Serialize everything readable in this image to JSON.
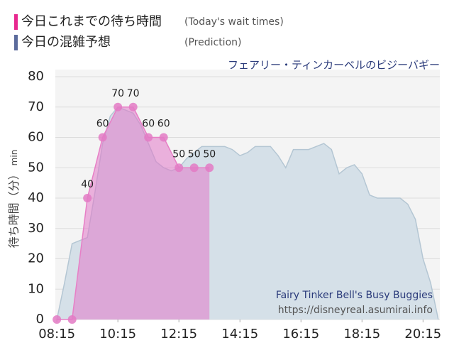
{
  "chart_data": {
    "type": "area",
    "subtitle": "フェアリー・ティンカーベルのビジーバギー",
    "ylabel": "待ち時間（分）",
    "yunit": "min",
    "annotations": [
      "Fairy Tinker Bell's Busy Buggies",
      "https://disneyreal.asumirai.info"
    ],
    "xlim": [
      492,
      1248
    ],
    "xticks": [
      {
        "value": 495,
        "label": "08:15"
      },
      {
        "value": 615,
        "label": "10:15"
      },
      {
        "value": 735,
        "label": "12:15"
      },
      {
        "value": 855,
        "label": "14:15"
      },
      {
        "value": 975,
        "label": "16:15"
      },
      {
        "value": 1095,
        "label": "18:15"
      },
      {
        "value": 1215,
        "label": "20:15"
      }
    ],
    "ylim": [
      0,
      80
    ],
    "yticks": [
      0,
      10,
      20,
      30,
      40,
      50,
      60,
      70,
      80
    ],
    "grid": true,
    "series": [
      {
        "name": "今日の混雑予想",
        "note": "(Prediction)",
        "color": "#5b6b9c",
        "fill": "#d5e0e8",
        "stroke": "#b4c6d3",
        "points": false,
        "x": [
          495,
          510,
          525,
          540,
          555,
          570,
          585,
          600,
          615,
          630,
          645,
          660,
          675,
          690,
          705,
          720,
          735,
          750,
          765,
          780,
          795,
          810,
          825,
          840,
          855,
          870,
          885,
          900,
          915,
          930,
          945,
          960,
          975,
          990,
          1005,
          1020,
          1035,
          1050,
          1065,
          1080,
          1095,
          1110,
          1125,
          1140,
          1155,
          1170,
          1185,
          1200,
          1215,
          1230,
          1245
        ],
        "values": [
          0,
          12,
          25,
          26,
          27,
          42,
          58,
          67,
          70,
          69,
          68,
          64,
          58,
          52,
          50,
          49,
          50,
          53,
          55,
          57,
          57,
          57,
          57,
          56,
          54,
          55,
          57,
          57,
          57,
          54,
          50,
          56,
          56,
          56,
          57,
          58,
          56,
          48,
          50,
          51,
          48,
          41,
          40,
          40,
          40,
          40,
          38,
          33,
          20,
          12,
          0
        ]
      },
      {
        "name": "今日これまでの待ち時間",
        "note": "(Today's wait times)",
        "color": "#e8288f",
        "fill": "rgba(226,120,200,0.55)",
        "stroke": "#e77fc6",
        "points": true,
        "point_color": "#e37ac4",
        "x": [
          495,
          525,
          555,
          585,
          615,
          645,
          675,
          705,
          735,
          765,
          795
        ],
        "values": [
          0,
          0,
          40,
          60,
          70,
          70,
          60,
          60,
          50,
          50,
          50
        ]
      }
    ]
  }
}
